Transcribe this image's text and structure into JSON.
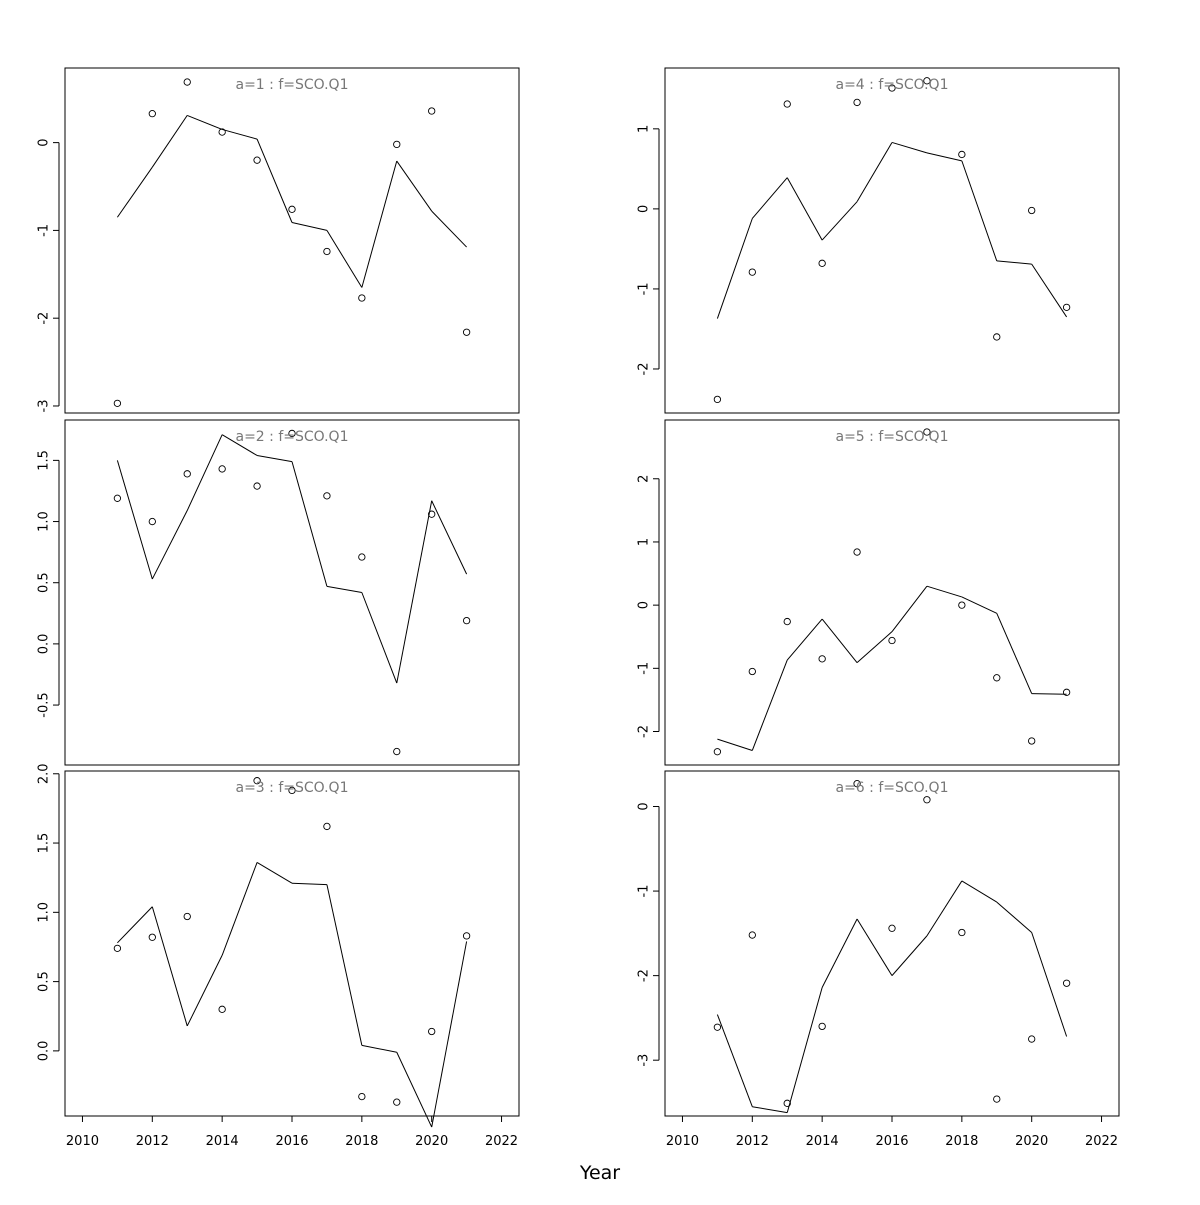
{
  "xlabel": "Year",
  "x_ticks": [
    2010,
    2012,
    2014,
    2016,
    2018,
    2020,
    2022
  ],
  "chart_data": [
    {
      "type": "line",
      "title": "a=1  :  f=SCO.Q1",
      "xlim": [
        2009.5,
        2022.5
      ],
      "ylim": [
        -3.08,
        0.85
      ],
      "yticks": [
        0,
        -1,
        -2,
        -3
      ],
      "x": [
        2011,
        2012,
        2013,
        2014,
        2015,
        2016,
        2017,
        2018,
        2019,
        2020,
        2021
      ],
      "series": [
        {
          "kind": "line",
          "values": [
            -0.85,
            -0.28,
            0.31,
            0.15,
            0.04,
            -0.91,
            -1.0,
            -1.65,
            -0.21,
            -0.78,
            -1.19
          ]
        },
        {
          "kind": "points",
          "values": [
            -2.97,
            0.33,
            0.69,
            0.12,
            -0.2,
            -0.76,
            -1.24,
            -1.77,
            -0.02,
            0.36,
            -2.16
          ]
        }
      ]
    },
    {
      "type": "line",
      "title": "a=4  :  f=SCO.Q1",
      "xlim": [
        2009.5,
        2022.5
      ],
      "ylim": [
        -2.55,
        1.76
      ],
      "yticks": [
        1,
        0,
        -1,
        -2
      ],
      "x": [
        2011,
        2012,
        2013,
        2014,
        2015,
        2016,
        2017,
        2018,
        2019,
        2020,
        2021
      ],
      "series": [
        {
          "kind": "line",
          "values": [
            -1.37,
            -0.12,
            0.39,
            -0.39,
            0.09,
            0.83,
            0.7,
            0.6,
            -0.65,
            -0.69,
            -1.35
          ]
        },
        {
          "kind": "points",
          "values": [
            -2.38,
            -0.79,
            1.31,
            -0.68,
            1.33,
            1.51,
            1.6,
            0.68,
            -1.6,
            -0.02,
            -1.23
          ]
        }
      ]
    },
    {
      "type": "line",
      "title": "a=2  :  f=SCO.Q1",
      "xlim": [
        2009.5,
        2022.5
      ],
      "ylim": [
        -0.99,
        1.83
      ],
      "yticks": [
        1.5,
        1.0,
        0.5,
        0.0,
        -0.5
      ],
      "x": [
        2011,
        2012,
        2013,
        2014,
        2015,
        2016,
        2017,
        2018,
        2019,
        2020,
        2021
      ],
      "series": [
        {
          "kind": "line",
          "values": [
            1.5,
            0.53,
            1.09,
            1.71,
            1.54,
            1.49,
            0.47,
            0.42,
            -0.32,
            1.17,
            0.57
          ]
        },
        {
          "kind": "points",
          "values": [
            1.19,
            1.0,
            1.39,
            1.43,
            1.29,
            1.72,
            1.21,
            0.71,
            -0.88,
            1.06,
            0.19
          ]
        }
      ]
    },
    {
      "type": "line",
      "title": "a=5  :  f=SCO.Q1",
      "xlim": [
        2009.5,
        2022.5
      ],
      "ylim": [
        -2.53,
        2.93
      ],
      "yticks": [
        2,
        1,
        0,
        -1,
        -2
      ],
      "x": [
        2011,
        2012,
        2013,
        2014,
        2015,
        2016,
        2017,
        2018,
        2019,
        2020,
        2021
      ],
      "series": [
        {
          "kind": "line",
          "values": [
            -2.12,
            -2.3,
            -0.87,
            -0.22,
            -0.91,
            -0.42,
            0.3,
            0.13,
            -0.13,
            -1.4,
            -1.41
          ]
        },
        {
          "kind": "points",
          "values": [
            -2.32,
            -1.05,
            -0.26,
            -0.85,
            0.84,
            -0.56,
            2.74,
            0.0,
            -1.15,
            -2.15,
            -1.38
          ]
        }
      ]
    },
    {
      "type": "line",
      "title": "a=3  :  f=SCO.Q1",
      "xlim": [
        2009.5,
        2022.5
      ],
      "ylim": [
        -0.47,
        2.02
      ],
      "yticks": [
        2.0,
        1.5,
        1.0,
        0.5,
        0.0
      ],
      "x": [
        2011,
        2012,
        2013,
        2014,
        2015,
        2016,
        2017,
        2018,
        2019,
        2020,
        2021
      ],
      "series": [
        {
          "kind": "line",
          "values": [
            0.78,
            1.04,
            0.18,
            0.69,
            1.36,
            1.21,
            1.2,
            0.04,
            -0.01,
            -0.55,
            0.79
          ]
        },
        {
          "kind": "points",
          "values": [
            0.74,
            0.82,
            0.97,
            0.3,
            1.95,
            1.88,
            1.62,
            -0.33,
            -0.37,
            0.14,
            0.83
          ]
        }
      ]
    },
    {
      "type": "line",
      "title": "a=6  :  f=SCO.Q1",
      "xlim": [
        2009.5,
        2022.5
      ],
      "ylim": [
        -3.66,
        0.42
      ],
      "yticks": [
        0,
        -1,
        -2,
        -3
      ],
      "x": [
        2011,
        2012,
        2013,
        2014,
        2015,
        2016,
        2017,
        2018,
        2019,
        2020,
        2021
      ],
      "series": [
        {
          "kind": "line",
          "values": [
            -2.46,
            -3.55,
            -3.62,
            -2.14,
            -1.33,
            -2.0,
            -1.53,
            -0.88,
            -1.13,
            -1.49,
            -2.72
          ]
        },
        {
          "kind": "points",
          "values": [
            -2.61,
            -1.52,
            -3.51,
            -2.6,
            0.27,
            -1.44,
            0.08,
            -1.49,
            -3.46,
            -2.75,
            -2.09
          ]
        }
      ]
    }
  ]
}
